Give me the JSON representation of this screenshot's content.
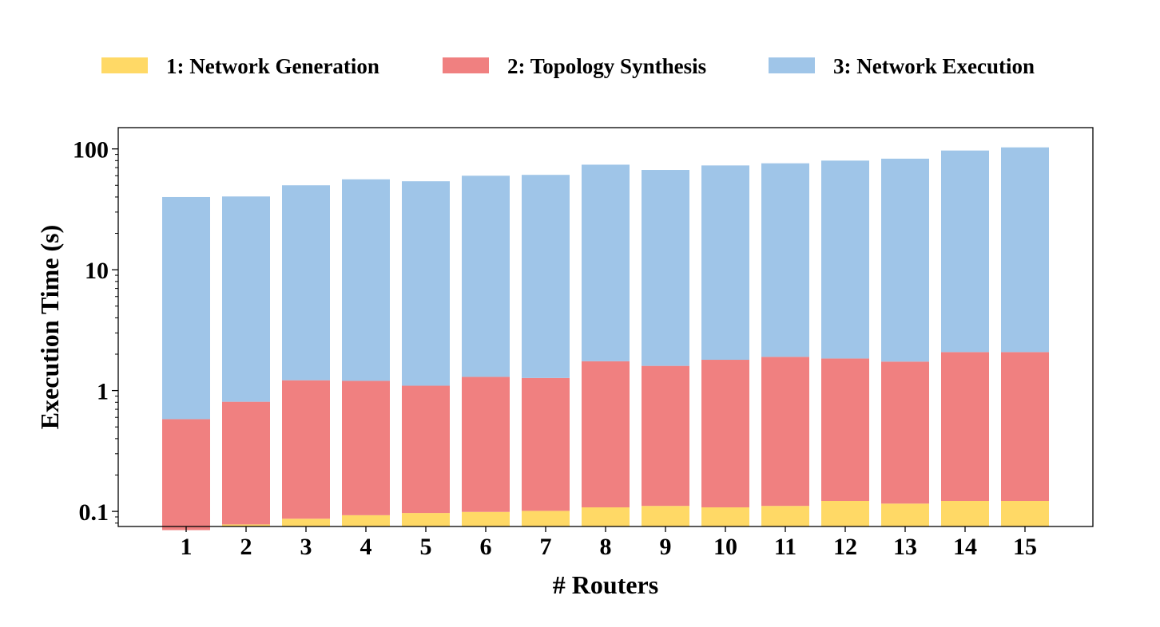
{
  "chart_data": {
    "type": "bar",
    "stacked": true,
    "categories": [
      "1",
      "2",
      "3",
      "4",
      "5",
      "6",
      "7",
      "8",
      "9",
      "10",
      "11",
      "12",
      "13",
      "14",
      "15"
    ],
    "series": [
      {
        "name": "1: Network Generation",
        "color": "#FFD966",
        "values": [
          0.07,
          0.078,
          0.087,
          0.093,
          0.097,
          0.099,
          0.101,
          0.108,
          0.111,
          0.108,
          0.111,
          0.122,
          0.116,
          0.122,
          0.122
        ]
      },
      {
        "name": "2: Topology Synthesis",
        "color": "#F08080",
        "values": [
          0.51,
          0.73,
          1.13,
          1.11,
          1.0,
          1.2,
          1.17,
          1.64,
          1.49,
          1.69,
          1.79,
          1.72,
          1.62,
          1.96,
          1.96
        ]
      },
      {
        "name": "3: Network Execution",
        "color": "#9FC5E8",
        "values": [
          39.4,
          39.6,
          48.8,
          54.8,
          52.9,
          58.7,
          59.7,
          72.3,
          65.4,
          71.2,
          74.1,
          78.2,
          81.3,
          94.9,
          100.9
        ]
      }
    ],
    "xlabel": "# Routers",
    "ylabel": "Execution Time (s)",
    "yscale": "log",
    "ylim": [
      0.075,
      150
    ],
    "yticks": [
      {
        "value": 0.1,
        "label": "0.1"
      },
      {
        "value": 1,
        "label": "1"
      },
      {
        "value": 10,
        "label": "10"
      },
      {
        "value": 100,
        "label": "100"
      }
    ],
    "grid": false,
    "legend_position": "top"
  }
}
